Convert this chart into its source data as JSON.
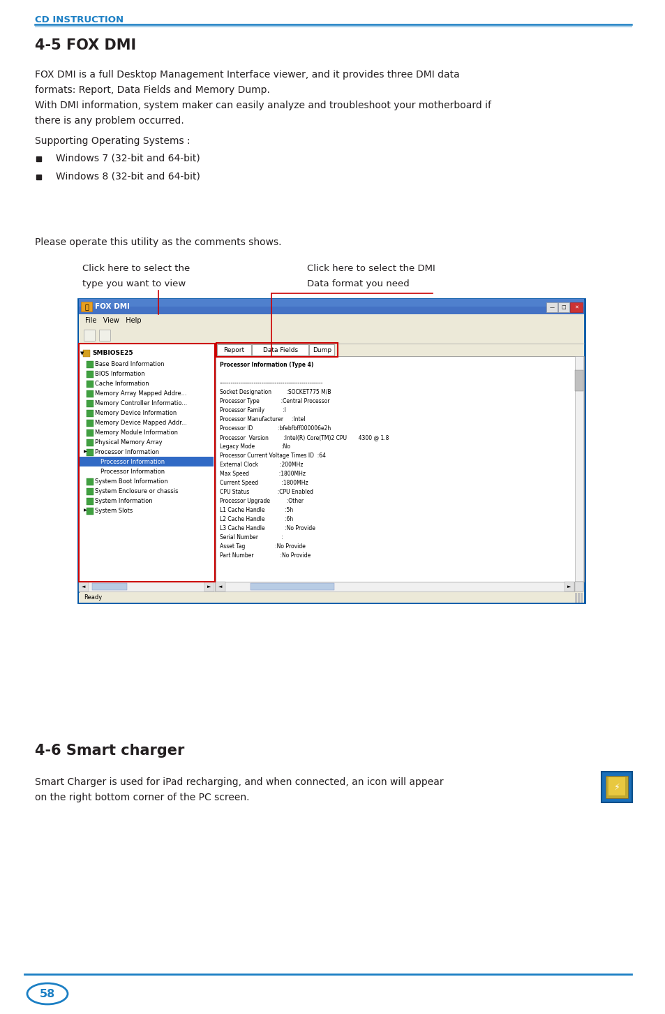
{
  "header_text": "CD INSTRUCTION",
  "header_color": "#1b7fc4",
  "title_45": "4-5 FOX DMI",
  "body_line1": "FOX DMI is a full Desktop Management Interface viewer, and it provides three DMI data",
  "body_line2": "formats: Report, Data Fields and Memory Dump.",
  "body_line3": "With DMI information, system maker can easily analyze and troubleshoot your motherboard if",
  "body_line4": "there is any problem occurred.",
  "supporting_os_label": "Supporting Operating Systems :",
  "bullet_items": [
    "Windows 7 (32-bit and 64-bit)",
    "Windows 8 (32-bit and 64-bit)"
  ],
  "please_text": "Please operate this utility as the comments shows.",
  "annotation_left_1": "Click here to select the",
  "annotation_left_2": "type you want to view",
  "annotation_right_1": "Click here to select the DMI",
  "annotation_right_2": "Data format you need",
  "title_46": "4-6 Smart charger",
  "smart_charger_text_1": "Smart Charger is used for iPad recharging, and when connected, an icon will appear",
  "smart_charger_text_2": "on the right bottom corner of the PC screen.",
  "page_number": "58",
  "blue_color": "#1b7fc4",
  "line_color": "#1b7fc4",
  "text_color": "#231f20",
  "bg_color": "#ffffff",
  "win_titlebar_color": "#3a6fd8",
  "win_bg_color": "#ece9d8",
  "win_white": "#ffffff",
  "win_border": "#0054a6",
  "tree_highlight": "#316ac5",
  "tab_red_border": "#cc0000",
  "left_panel_red_border": "#cc0000",
  "scrollbar_color": "#b8cce4",
  "anno_line_color": "#cc0000",
  "page_badge_color": "#1b7fc4"
}
